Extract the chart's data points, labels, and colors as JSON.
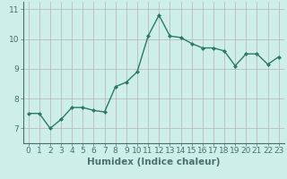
{
  "title": "",
  "xlabel": "Humidex (Indice chaleur)",
  "ylabel": "",
  "x": [
    0,
    1,
    2,
    3,
    4,
    5,
    6,
    7,
    8,
    9,
    10,
    11,
    12,
    13,
    14,
    15,
    16,
    17,
    18,
    19,
    20,
    21,
    22,
    23
  ],
  "y": [
    7.5,
    7.5,
    7.0,
    7.3,
    7.7,
    7.7,
    7.6,
    7.55,
    8.4,
    8.55,
    8.9,
    10.1,
    10.8,
    10.1,
    10.05,
    9.85,
    9.7,
    9.7,
    9.6,
    9.1,
    9.5,
    9.5,
    9.15,
    9.4
  ],
  "line_color": "#2a7a68",
  "marker": "D",
  "marker_size": 2.0,
  "bg_color": "#ceeee8",
  "grid_color": "#b8b0b0",
  "axis_color": "#4a7070",
  "ylim": [
    6.5,
    11.25
  ],
  "xlim": [
    -0.5,
    23.5
  ],
  "yticks": [
    7,
    8,
    9,
    10,
    11
  ],
  "xticks": [
    0,
    1,
    2,
    3,
    4,
    5,
    6,
    7,
    8,
    9,
    10,
    11,
    12,
    13,
    14,
    15,
    16,
    17,
    18,
    19,
    20,
    21,
    22,
    23
  ],
  "tick_fontsize": 6.5,
  "xlabel_fontsize": 7.5,
  "line_width": 1.0
}
